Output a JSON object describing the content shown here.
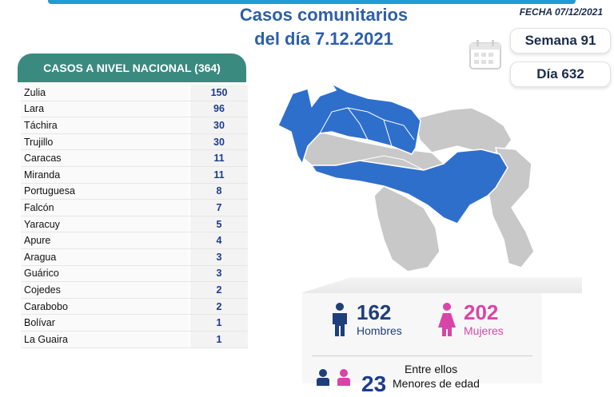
{
  "header": {
    "title_line1": "Casos comunitarios",
    "title_line2": "del día 7.12.2021",
    "date": "FECHA 07/12/2021"
  },
  "counters": {
    "week": "Semana 91",
    "day": "Día 632"
  },
  "table": {
    "header": "CASOS A NIVEL NACIONAL  (364)",
    "rows": [
      {
        "state": "Zulia",
        "count": "150"
      },
      {
        "state": "Lara",
        "count": "96"
      },
      {
        "state": "Táchira",
        "count": "30"
      },
      {
        "state": "Trujillo",
        "count": "30"
      },
      {
        "state": "Caracas",
        "count": "11"
      },
      {
        "state": "Miranda",
        "count": "11"
      },
      {
        "state": "Portuguesa",
        "count": "8"
      },
      {
        "state": "Falcón",
        "count": "7"
      },
      {
        "state": "Yaracuy",
        "count": "5"
      },
      {
        "state": "Apure",
        "count": "4"
      },
      {
        "state": "Aragua",
        "count": "3"
      },
      {
        "state": "Guárico",
        "count": "3"
      },
      {
        "state": "Cojedes",
        "count": "2"
      },
      {
        "state": "Carabobo",
        "count": "2"
      },
      {
        "state": "Bolívar",
        "count": "1"
      },
      {
        "state": "La Guaira",
        "count": "1"
      }
    ]
  },
  "gender": {
    "men_count": "162",
    "men_label": "Hombres",
    "women_count": "202",
    "women_label": "Mujeres",
    "among_label": "Entre ellos",
    "minors_count": "23",
    "minors_label": "Menores de edad"
  },
  "colors": {
    "men": "#1f3f7a",
    "women": "#d845a8",
    "accent": "#3a8a7f",
    "map_highlight": "#2f6fcc",
    "map_base": "#c8c8c8"
  }
}
